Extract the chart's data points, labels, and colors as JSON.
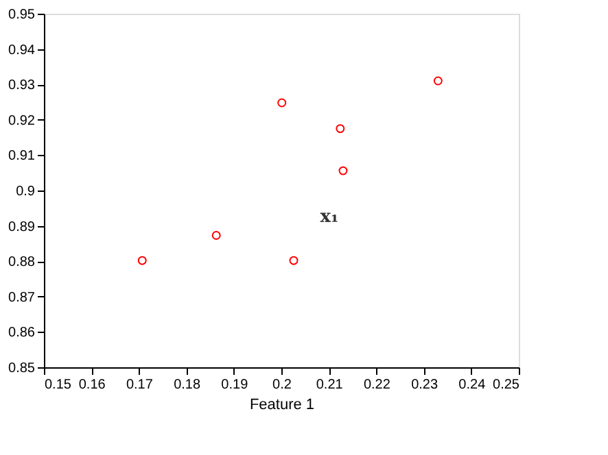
{
  "chart_data": {
    "type": "scatter",
    "xlabel": "Feature 1",
    "x": [
      0.1707,
      0.1863,
      0.2001,
      0.2026,
      0.2124,
      0.213,
      0.233
    ],
    "series": [
      {
        "color": "#ff0000",
        "values": [
          0.8802,
          0.8873,
          0.9248,
          0.8802,
          0.9175,
          0.9056,
          0.931
        ]
      }
    ],
    "marker": "circle",
    "xlim": [
      0.15,
      0.25
    ],
    "xticks": [
      0.15,
      0.16,
      0.17,
      0.18,
      0.19,
      0.2,
      0.21,
      0.22,
      0.23,
      0.24,
      0.25
    ],
    "ylim": [
      0.85,
      0.95
    ],
    "yticks": [
      0.85,
      0.86,
      0.87,
      0.88,
      0.89,
      0.9,
      0.91,
      0.92,
      0.93,
      0.94,
      0.95
    ],
    "annotations": [
      "x₁"
    ],
    "grid": false
  }
}
